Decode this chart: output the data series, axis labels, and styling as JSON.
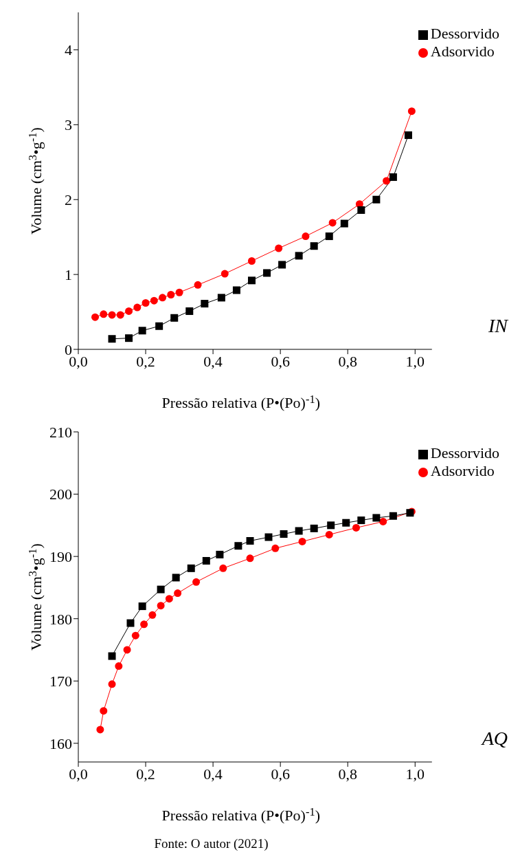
{
  "chart_data": [
    {
      "type": "line",
      "xlabel": "Pressão relativa (P•(Po)$^{-1}$)",
      "ylabel": "Volume (cm$^{3}$•g$^{-1}$)",
      "xlim": [
        0,
        1.05
      ],
      "ylim": [
        0,
        4.5
      ],
      "xticks": [
        {
          "value": 0,
          "label": "0,0"
        },
        {
          "value": 0.2,
          "label": "0,2"
        },
        {
          "value": 0.4,
          "label": "0,4"
        },
        {
          "value": 0.6,
          "label": "0,6"
        },
        {
          "value": 0.8,
          "label": "0,8"
        },
        {
          "value": 1,
          "label": "1,0"
        }
      ],
      "yticks": [
        0,
        1,
        2,
        3,
        4
      ],
      "legend": "top right",
      "annotations": [
        "IN"
      ],
      "series": [
        {
          "name": "Dessorvido",
          "color": "#000000",
          "marker": "square",
          "x": [
            0.1,
            0.15,
            0.19,
            0.24,
            0.285,
            0.33,
            0.375,
            0.425,
            0.47,
            0.515,
            0.56,
            0.605,
            0.655,
            0.7,
            0.745,
            0.79,
            0.84,
            0.885,
            0.935,
            0.98
          ],
          "values": [
            0.14,
            0.15,
            0.25,
            0.31,
            0.42,
            0.51,
            0.61,
            0.69,
            0.79,
            0.92,
            1.02,
            1.13,
            1.25,
            1.38,
            1.51,
            1.68,
            1.86,
            2.0,
            2.3,
            2.86
          ]
        },
        {
          "name": "Adsorvido",
          "color": "#ff0000",
          "marker": "circle",
          "x": [
            0.05,
            0.075,
            0.1,
            0.125,
            0.15,
            0.175,
            0.2,
            0.225,
            0.25,
            0.275,
            0.3,
            0.355,
            0.435,
            0.515,
            0.595,
            0.675,
            0.755,
            0.835,
            0.915,
            0.99
          ],
          "values": [
            0.43,
            0.47,
            0.46,
            0.46,
            0.51,
            0.56,
            0.62,
            0.65,
            0.69,
            0.73,
            0.76,
            0.86,
            1.01,
            1.18,
            1.35,
            1.51,
            1.69,
            1.94,
            2.25,
            3.18
          ]
        }
      ]
    },
    {
      "type": "line",
      "xlabel": "Pressão relativa (P•(Po)$^{-1}$)",
      "ylabel": "Volume (cm$^{3}$•g$^{-1}$)",
      "xlim": [
        0,
        1.05
      ],
      "ylim": [
        157,
        210
      ],
      "xticks": [
        {
          "value": 0,
          "label": "0,0"
        },
        {
          "value": 0.2,
          "label": "0,2"
        },
        {
          "value": 0.4,
          "label": "0,4"
        },
        {
          "value": 0.6,
          "label": "0,6"
        },
        {
          "value": 0.8,
          "label": "0,8"
        },
        {
          "value": 1,
          "label": "1,0"
        }
      ],
      "yticks": [
        160,
        170,
        180,
        190,
        200,
        210
      ],
      "legend": "top right",
      "annotations": [
        "AQ",
        "Fonte: O autor (2021)"
      ],
      "series": [
        {
          "name": "Dessorvido",
          "color": "#000000",
          "marker": "square",
          "x": [
            0.1,
            0.155,
            0.19,
            0.245,
            0.29,
            0.335,
            0.38,
            0.42,
            0.475,
            0.51,
            0.565,
            0.61,
            0.655,
            0.7,
            0.75,
            0.795,
            0.84,
            0.885,
            0.935,
            0.985
          ],
          "values": [
            174,
            179.3,
            182,
            184.7,
            186.6,
            188.1,
            189.3,
            190.3,
            191.7,
            192.5,
            193.1,
            193.6,
            194.1,
            194.5,
            195,
            195.4,
            195.8,
            196.2,
            196.5,
            197
          ]
        },
        {
          "name": "Adsorvido",
          "color": "#ff0000",
          "marker": "circle",
          "x": [
            0.065,
            0.075,
            0.1,
            0.12,
            0.145,
            0.17,
            0.195,
            0.22,
            0.245,
            0.27,
            0.295,
            0.35,
            0.43,
            0.51,
            0.585,
            0.665,
            0.745,
            0.825,
            0.905,
            0.99
          ],
          "values": [
            162.2,
            165.2,
            169.5,
            172.4,
            175,
            177.3,
            179.1,
            180.6,
            182.1,
            183.2,
            184.1,
            185.9,
            188.1,
            189.7,
            191.3,
            192.4,
            193.5,
            194.6,
            195.6,
            197.2
          ]
        }
      ]
    }
  ]
}
